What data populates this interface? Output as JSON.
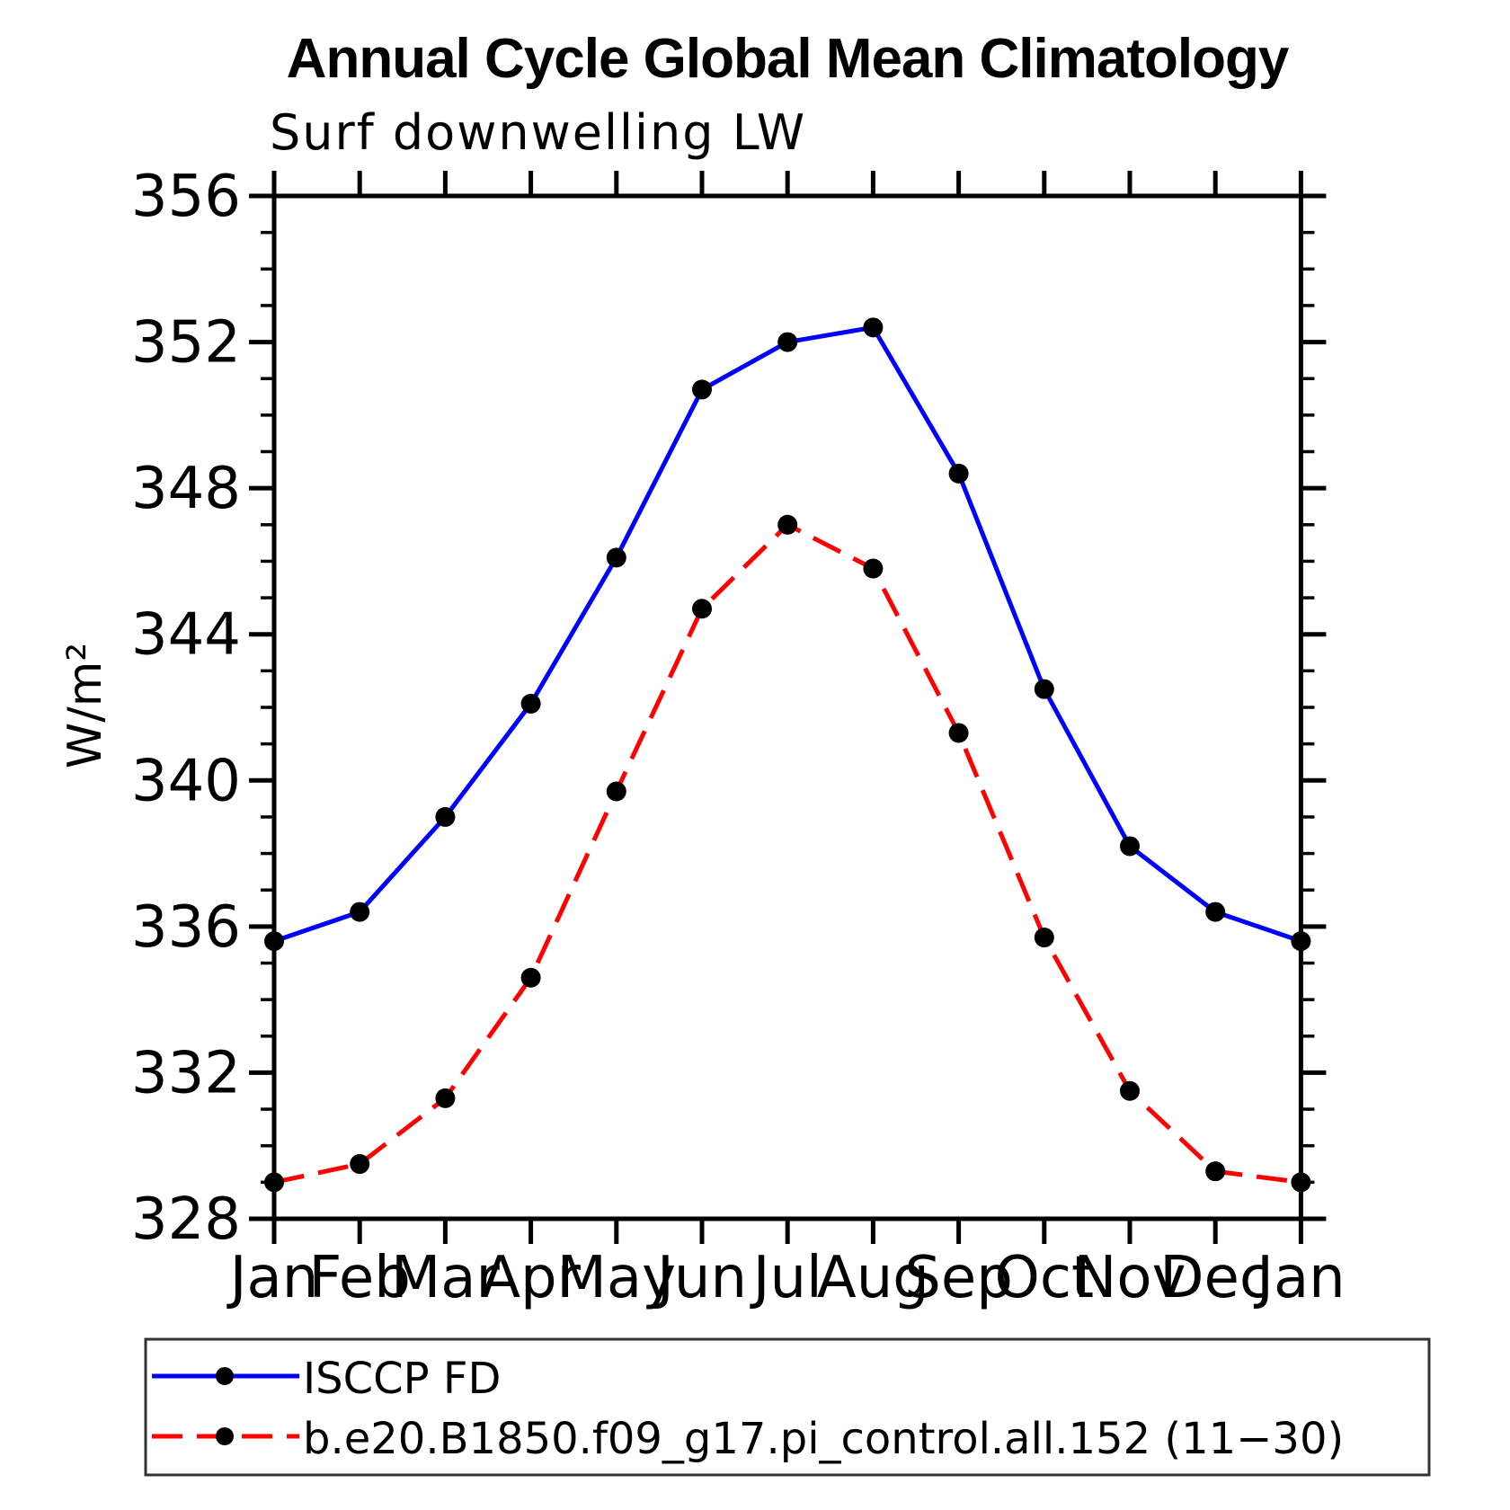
{
  "chart_data": {
    "type": "line",
    "title": "Annual Cycle Global Mean Climatology",
    "subtitle": "Surf downwelling LW",
    "ylabel": "W/m²",
    "categories": [
      "Jan",
      "Feb",
      "Mar",
      "Apr",
      "May",
      "Jun",
      "Jul",
      "Aug",
      "Sep",
      "Oct",
      "Nov",
      "Dec",
      "Jan"
    ],
    "ylim": [
      328,
      356
    ],
    "y_major_step": 4,
    "y_minor_step": 1,
    "y_ticks": [
      328,
      332,
      336,
      340,
      344,
      348,
      352,
      356
    ],
    "grid": false,
    "legend_position": "bottom",
    "series": [
      {
        "name": "ISCCP FD",
        "color": "#0000ff",
        "style": "solid",
        "marker": "circle",
        "marker_color": "#000000",
        "values": [
          335.6,
          336.4,
          339.0,
          342.1,
          346.1,
          350.7,
          352.0,
          352.4,
          348.4,
          342.5,
          338.2,
          336.4,
          335.6
        ]
      },
      {
        "name": "b.e20.B1850.f09_g17.pi_control.all.152 (11−30)",
        "color": "#ff0000",
        "style": "dashed",
        "marker": "circle",
        "marker_color": "#000000",
        "values": [
          329.0,
          329.5,
          331.3,
          334.6,
          339.7,
          344.7,
          347.0,
          345.8,
          341.3,
          335.7,
          331.5,
          329.3,
          329.0
        ]
      }
    ]
  }
}
